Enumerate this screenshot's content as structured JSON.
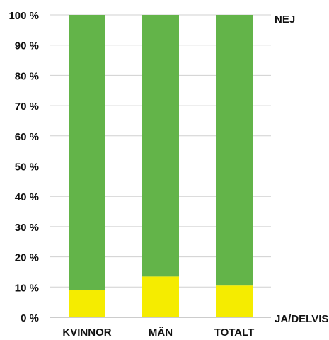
{
  "chart_data": {
    "type": "bar",
    "stacked": true,
    "percent_scale": true,
    "categories": [
      "KVINNOR",
      "MÄN",
      "TOTALT"
    ],
    "series": [
      {
        "name": "JA/DELVIS",
        "values": [
          9,
          13.5,
          10.5
        ],
        "color": "#f5ec00"
      },
      {
        "name": "NEJ",
        "values": [
          91,
          86.5,
          89.5
        ],
        "color": "#63b449"
      }
    ],
    "ylim": [
      0,
      100
    ],
    "yticks": [
      0,
      10,
      20,
      30,
      40,
      50,
      60,
      70,
      80,
      90,
      100
    ],
    "ytick_labels": [
      "0 %",
      "10 %",
      "20 %",
      "30 %",
      "40 %",
      "50 %",
      "60 %",
      "70 %",
      "80 %",
      "90 %",
      "100 %"
    ],
    "grid": true,
    "legend": "right side, series names beside the top and bottom of the bars",
    "title": "",
    "xlabel": "",
    "ylabel": ""
  }
}
